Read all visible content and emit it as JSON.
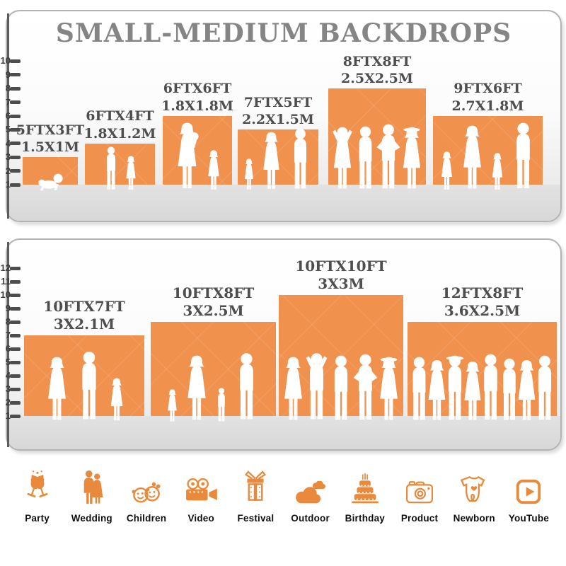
{
  "title": "SMALL-MEDIUM BACKDROPS",
  "colors": {
    "bar_orange": "#F0914E",
    "icon_orange": "#E8893B",
    "title_gray": "#858585",
    "label_gray": "#4E4E4E",
    "ruler_gray": "#4D4D4D",
    "floor_gray": "#DEDEDE",
    "card_border": "#B3B3B3",
    "silhouette_white": "#FFFFFF"
  },
  "chart_data": {
    "type": "bar",
    "title": "SMALL-MEDIUM BACKDROPS",
    "units": {
      "ruler": "feet"
    },
    "legend_position": "none",
    "panels": [
      {
        "name": "small-medium-backdrops",
        "ruler": {
          "min": 1,
          "max": 10
        },
        "bars": [
          {
            "size_ft": "5FTX3FT",
            "size_m": "1.5X1M",
            "width_ft": 5,
            "height_ft": 3,
            "figures": [
              {
                "type": "baby-crawling",
                "height_ft": 1.35
              }
            ]
          },
          {
            "size_ft": "6FTX4FT",
            "size_m": "1.8X1.2M",
            "width_ft": 6,
            "height_ft": 4,
            "figures": [
              {
                "type": "boy",
                "height_ft": 3.25
              },
              {
                "type": "girl",
                "height_ft": 2.6
              }
            ]
          },
          {
            "size_ft": "6FTX6FT",
            "size_m": "1.8X1.8M",
            "width_ft": 6,
            "height_ft": 6,
            "figures": [
              {
                "type": "woman-holding-baby",
                "height_ft": 5.0
              },
              {
                "type": "girl",
                "height_ft": 3.0
              }
            ]
          },
          {
            "size_ft": "7FTX5FT",
            "size_m": "2.2X1.5M",
            "width_ft": 7,
            "height_ft": 5,
            "figures": [
              {
                "type": "toddler-girl",
                "height_ft": 2.35
              },
              {
                "type": "woman",
                "height_ft": 4.35
              },
              {
                "type": "man",
                "height_ft": 4.6
              }
            ]
          },
          {
            "size_ft": "8FTX8FT",
            "size_m": "2.5X2.5M",
            "width_ft": 8,
            "height_ft": 8,
            "figures": [
              {
                "type": "woman-arms-up",
                "height_ft": 4.7
              },
              {
                "type": "man",
                "height_ft": 4.75
              },
              {
                "type": "man-hands-on-hips",
                "height_ft": 4.9
              },
              {
                "type": "woman-hat",
                "height_ft": 4.7
              }
            ]
          },
          {
            "size_ft": "9FTX6FT",
            "size_m": "2.7X1.8M",
            "width_ft": 9,
            "height_ft": 6,
            "figures": [
              {
                "type": "girl",
                "height_ft": 2.9
              },
              {
                "type": "woman",
                "height_ft": 4.8
              },
              {
                "type": "girl",
                "height_ft": 2.8
              },
              {
                "type": "man",
                "height_ft": 5.0
              }
            ]
          }
        ]
      },
      {
        "name": "medium-large-backdrops",
        "ruler": {
          "min": 1,
          "max": 12
        },
        "bars": [
          {
            "size_ft": "10FTX7FT",
            "size_m": "3X2.1M",
            "width_ft": 10,
            "height_ft": 7,
            "figures": [
              {
                "type": "woman",
                "height_ft": 4.9
              },
              {
                "type": "man",
                "height_ft": 5.3
              },
              {
                "type": "girl",
                "height_ft": 3.3
              }
            ]
          },
          {
            "size_ft": "10FTX8FT",
            "size_m": "3X2.5M",
            "width_ft": 10,
            "height_ft": 8,
            "figures": [
              {
                "type": "toddler-girl",
                "height_ft": 2.5
              },
              {
                "type": "woman",
                "height_ft": 5.0
              },
              {
                "type": "toddler-boy",
                "height_ft": 2.6
              },
              {
                "type": "man",
                "height_ft": 5.2
              }
            ]
          },
          {
            "size_ft": "10FTX10FT",
            "size_m": "3X3M",
            "width_ft": 10,
            "height_ft": 10,
            "figures": [
              {
                "type": "woman",
                "height_ft": 4.9
              },
              {
                "type": "man-arms-up",
                "height_ft": 5.2
              },
              {
                "type": "man",
                "height_ft": 5.0
              },
              {
                "type": "man-hands-on-hips",
                "height_ft": 5.1
              },
              {
                "type": "woman-hat",
                "height_ft": 4.9
              }
            ]
          },
          {
            "size_ft": "12FTX8FT",
            "size_m": "3.6X2.5M",
            "width_ft": 12,
            "height_ft": 8,
            "figures": [
              {
                "type": "man",
                "height_ft": 4.9
              },
              {
                "type": "woman",
                "height_ft": 4.7
              },
              {
                "type": "man-hat",
                "height_ft": 5.0
              },
              {
                "type": "woman",
                "height_ft": 4.6
              },
              {
                "type": "man",
                "height_ft": 5.1
              },
              {
                "type": "man",
                "height_ft": 4.8
              },
              {
                "type": "woman",
                "height_ft": 4.7
              },
              {
                "type": "man",
                "height_ft": 5.0
              }
            ]
          }
        ]
      }
    ]
  },
  "categories": [
    {
      "label": "Party",
      "icon": "party-icon"
    },
    {
      "label": "Wedding",
      "icon": "wedding-icon"
    },
    {
      "label": "Children",
      "icon": "children-icon"
    },
    {
      "label": "Video",
      "icon": "video-icon"
    },
    {
      "label": "Festival",
      "icon": "festival-icon"
    },
    {
      "label": "Outdoor",
      "icon": "outdoor-icon"
    },
    {
      "label": "Birthday",
      "icon": "birthday-icon"
    },
    {
      "label": "Product",
      "icon": "product-icon"
    },
    {
      "label": "Newborn",
      "icon": "newborn-icon"
    },
    {
      "label": "YouTube",
      "icon": "youtube-icon"
    }
  ]
}
